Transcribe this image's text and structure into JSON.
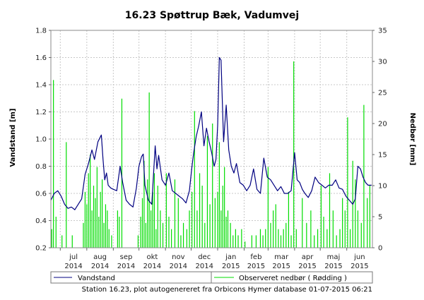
{
  "chart_data": {
    "type": "line",
    "title": "16.23 Spøttrup Bæk, Vadumvej",
    "ylabel": "Vandstand [m]",
    "y2label": "Nedbør [mm]",
    "ylim": [
      0.2,
      1.8
    ],
    "y2lim": [
      0,
      35
    ],
    "yticks": [
      "0.2",
      "0.4",
      "0.6",
      "0.8",
      "1.0",
      "1.2",
      "1.4",
      "1.6",
      "1.8"
    ],
    "y2ticks": [
      "0",
      "5",
      "10",
      "15",
      "20",
      "25",
      "30",
      "35"
    ],
    "months": [
      {
        "m": "jul",
        "y": "2014"
      },
      {
        "m": "aug",
        "y": "2014"
      },
      {
        "m": "sep",
        "y": "2014"
      },
      {
        "m": "okt",
        "y": "2014"
      },
      {
        "m": "nov",
        "y": "2014"
      },
      {
        "m": "dec",
        "y": "2014"
      },
      {
        "m": "jan",
        "y": "2015"
      },
      {
        "m": "feb",
        "y": "2015"
      },
      {
        "m": "mar",
        "y": "2015"
      },
      {
        "m": "apr",
        "y": "2015"
      },
      {
        "m": "maj",
        "y": "2015"
      },
      {
        "m": "jun",
        "y": "2015"
      }
    ],
    "xlim": [
      "2014-06-20",
      "2015-07-01"
    ],
    "grid": true,
    "legend_position": "bottom",
    "colors": {
      "water": "#000080",
      "rain": "#00dd00"
    },
    "series": [
      {
        "name": "Vandstand",
        "axis": "left",
        "x": [
          "2014-06-20",
          "2014-06-24",
          "2014-06-28",
          "2014-07-02",
          "2014-07-06",
          "2014-07-10",
          "2014-07-14",
          "2014-07-18",
          "2014-07-22",
          "2014-07-26",
          "2014-07-30",
          "2014-08-03",
          "2014-08-07",
          "2014-08-10",
          "2014-08-14",
          "2014-08-18",
          "2014-08-20",
          "2014-08-22",
          "2014-08-24",
          "2014-08-26",
          "2014-08-29",
          "2014-09-01",
          "2014-09-05",
          "2014-09-09",
          "2014-09-12",
          "2014-09-16",
          "2014-09-20",
          "2014-09-24",
          "2014-09-28",
          "2014-10-01",
          "2014-10-04",
          "2014-10-06",
          "2014-10-08",
          "2014-10-12",
          "2014-10-16",
          "2014-10-20",
          "2014-10-22",
          "2014-10-24",
          "2014-10-28",
          "2014-11-01",
          "2014-11-05",
          "2014-11-09",
          "2014-11-13",
          "2014-11-17",
          "2014-11-21",
          "2014-11-25",
          "2014-11-29",
          "2014-12-02",
          "2014-12-04",
          "2014-12-07",
          "2014-12-10",
          "2014-12-13",
          "2014-12-16",
          "2014-12-19",
          "2014-12-22",
          "2014-12-25",
          "2014-12-28",
          "2014-12-30",
          "2015-01-01",
          "2015-01-02",
          "2015-01-03",
          "2015-01-05",
          "2015-01-08",
          "2015-01-11",
          "2015-01-14",
          "2015-01-17",
          "2015-01-20",
          "2015-01-23",
          "2015-01-27",
          "2015-01-31",
          "2015-02-04",
          "2015-02-08",
          "2015-02-12",
          "2015-02-16",
          "2015-02-20",
          "2015-02-24",
          "2015-02-28",
          "2015-03-04",
          "2015-03-08",
          "2015-03-12",
          "2015-03-16",
          "2015-03-20",
          "2015-03-24",
          "2015-03-28",
          "2015-04-01",
          "2015-04-04",
          "2015-04-07",
          "2015-04-10",
          "2015-04-13",
          "2015-04-17",
          "2015-04-21",
          "2015-04-25",
          "2015-04-29",
          "2015-05-03",
          "2015-05-07",
          "2015-05-11",
          "2015-05-15",
          "2015-05-19",
          "2015-05-23",
          "2015-05-27",
          "2015-05-31",
          "2015-06-04",
          "2015-06-08",
          "2015-06-11",
          "2015-06-14",
          "2015-06-17",
          "2015-06-20",
          "2015-06-23",
          "2015-06-26",
          "2015-06-30"
        ],
        "y": [
          0.55,
          0.6,
          0.62,
          0.58,
          0.52,
          0.49,
          0.5,
          0.48,
          0.52,
          0.56,
          0.74,
          0.82,
          0.92,
          0.85,
          0.98,
          1.03,
          0.85,
          0.7,
          0.75,
          0.66,
          0.64,
          0.63,
          0.62,
          0.8,
          0.68,
          0.55,
          0.52,
          0.5,
          0.64,
          0.8,
          0.87,
          0.89,
          0.66,
          0.55,
          0.52,
          0.95,
          0.78,
          0.88,
          0.7,
          0.66,
          0.75,
          0.62,
          0.6,
          0.58,
          0.56,
          0.53,
          0.62,
          0.8,
          0.9,
          1.02,
          1.1,
          1.2,
          0.95,
          1.08,
          0.98,
          0.9,
          0.8,
          0.85,
          1.1,
          1.35,
          1.6,
          1.58,
          0.98,
          1.25,
          0.92,
          0.8,
          0.75,
          0.82,
          0.68,
          0.66,
          0.62,
          0.66,
          0.78,
          0.63,
          0.6,
          0.86,
          0.72,
          0.7,
          0.66,
          0.62,
          0.65,
          0.6,
          0.6,
          0.62,
          0.9,
          0.7,
          0.68,
          0.63,
          0.6,
          0.57,
          0.62,
          0.72,
          0.68,
          0.66,
          0.64,
          0.66,
          0.66,
          0.7,
          0.64,
          0.63,
          0.58,
          0.55,
          0.52,
          0.56,
          0.8,
          0.78,
          0.72,
          0.68,
          0.66,
          0.66
        ]
      },
      {
        "name": "Observeret nedbør ( Rødding )",
        "axis": "right",
        "type": "bar",
        "x": [
          "2014-06-21",
          "2014-06-23",
          "2014-06-26",
          "2014-07-03",
          "2014-07-08",
          "2014-07-15",
          "2014-07-28",
          "2014-07-30",
          "2014-08-01",
          "2014-08-03",
          "2014-08-05",
          "2014-08-07",
          "2014-08-09",
          "2014-08-11",
          "2014-08-13",
          "2014-08-15",
          "2014-08-17",
          "2014-08-19",
          "2014-08-21",
          "2014-08-23",
          "2014-08-25",
          "2014-08-27",
          "2014-08-30",
          "2014-09-06",
          "2014-09-08",
          "2014-09-11",
          "2014-09-30",
          "2014-10-03",
          "2014-10-05",
          "2014-10-07",
          "2014-10-09",
          "2014-10-11",
          "2014-10-13",
          "2014-10-15",
          "2014-10-17",
          "2014-10-19",
          "2014-10-21",
          "2014-10-23",
          "2014-10-26",
          "2014-10-29",
          "2014-11-02",
          "2014-11-05",
          "2014-11-08",
          "2014-11-12",
          "2014-11-16",
          "2014-11-19",
          "2014-11-22",
          "2014-11-26",
          "2014-11-29",
          "2014-12-02",
          "2014-12-05",
          "2014-12-08",
          "2014-12-11",
          "2014-12-14",
          "2014-12-17",
          "2014-12-20",
          "2014-12-23",
          "2014-12-26",
          "2014-12-29",
          "2015-01-01",
          "2015-01-03",
          "2015-01-05",
          "2015-01-07",
          "2015-01-09",
          "2015-01-11",
          "2015-01-13",
          "2015-01-16",
          "2015-01-19",
          "2015-01-22",
          "2015-01-25",
          "2015-01-29",
          "2015-02-02",
          "2015-02-10",
          "2015-02-15",
          "2015-02-20",
          "2015-02-23",
          "2015-02-26",
          "2015-03-01",
          "2015-03-04",
          "2015-03-07",
          "2015-03-10",
          "2015-03-13",
          "2015-03-16",
          "2015-03-19",
          "2015-03-22",
          "2015-03-25",
          "2015-03-28",
          "2015-03-31",
          "2015-04-03",
          "2015-04-10",
          "2015-04-15",
          "2015-04-20",
          "2015-04-24",
          "2015-04-28",
          "2015-05-02",
          "2015-05-05",
          "2015-05-09",
          "2015-05-12",
          "2015-05-16",
          "2015-05-20",
          "2015-05-24",
          "2015-05-27",
          "2015-05-30",
          "2015-06-02",
          "2015-06-05",
          "2015-06-08",
          "2015-06-11",
          "2015-06-14",
          "2015-06-18",
          "2015-06-21",
          "2015-06-25",
          "2015-06-28"
        ],
        "y": [
          3,
          27,
          5,
          2,
          17,
          2,
          4,
          9,
          7,
          12,
          15,
          6,
          10,
          8,
          13,
          5,
          9,
          11,
          4,
          7,
          6,
          3,
          2,
          6,
          5,
          24,
          2,
          5,
          8,
          14,
          4,
          11,
          25,
          6,
          9,
          12,
          3,
          10,
          6,
          4,
          12,
          5,
          3,
          11,
          8,
          2,
          4,
          3,
          6,
          9,
          22,
          6,
          12,
          10,
          4,
          18,
          7,
          20,
          8,
          9,
          17,
          6,
          10,
          13,
          5,
          6,
          4,
          2,
          3,
          2,
          3,
          1,
          2,
          2,
          3,
          2,
          3,
          13,
          4,
          6,
          7,
          3,
          2,
          3,
          4,
          9,
          2,
          30,
          3,
          8,
          4,
          6,
          2,
          3,
          10,
          5,
          3,
          12,
          6,
          2,
          3,
          8,
          6,
          21,
          3,
          14,
          11,
          6,
          4,
          23,
          8,
          10
        ]
      }
    ],
    "legend": [
      "Vandstand",
      "Observeret nedbør ( Rødding )"
    ],
    "footer": "Station 16.23, plot autogenereret fra Orbicons Hymer database 01-07-2015 06:21"
  }
}
